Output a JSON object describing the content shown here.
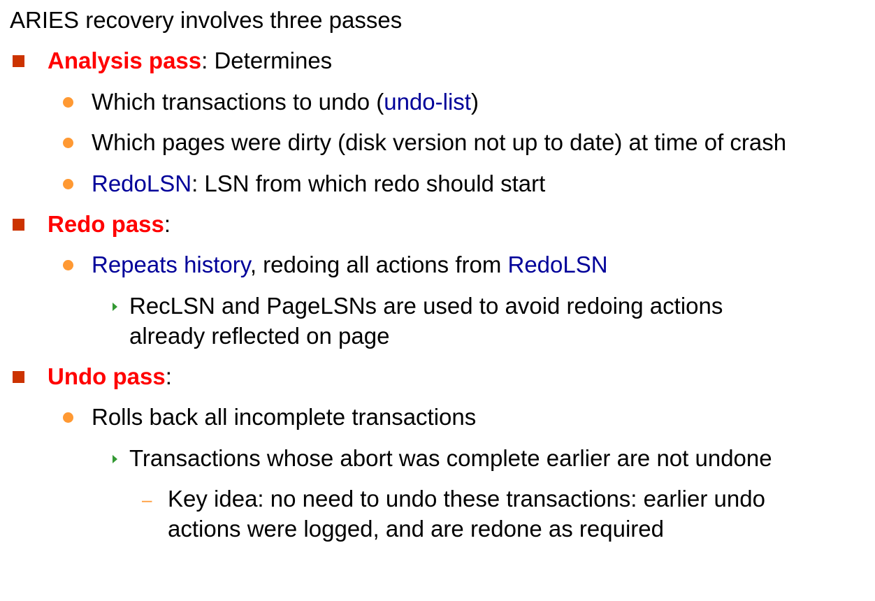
{
  "slide": {
    "intro": "ARIES recovery involves three passes",
    "analysis": {
      "title": "Analysis pass",
      "rest": ": Determines",
      "sub1_pre": "Which transactions to undo  (",
      "sub1_link": "undo-list",
      "sub1_post": ")",
      "sub2": "Which pages were dirty (disk version not up to date) at time of crash",
      "sub3_term": "RedoLSN",
      "sub3_rest": ": LSN from which redo should start"
    },
    "redo": {
      "title": "Redo pass",
      "rest": ":",
      "sub1_term": "Repeats history",
      "sub1_mid": ", redoing all actions from ",
      "sub1_term2": "RedoLSN",
      "sub1_a_line1": "RecLSN and PageLSNs are used to avoid redoing actions",
      "sub1_a_line2": "already reflected on page"
    },
    "undo": {
      "title": "Undo pass",
      "rest": ":",
      "sub1": "Rolls back all incomplete transactions",
      "sub1_a": "Transactions whose abort was complete earlier are not undone",
      "sub1_a_i_line1": "Key idea: no need to undo these transactions: earlier undo",
      "sub1_a_i_line2": "actions were logged, and are redone as required"
    }
  },
  "colors": {
    "heading_red": "#ff0000",
    "term_blue": "#000099",
    "square_bullet": "#cc3300",
    "dot_bullet": "#ff9933",
    "arrow_bullet": "#339933"
  }
}
